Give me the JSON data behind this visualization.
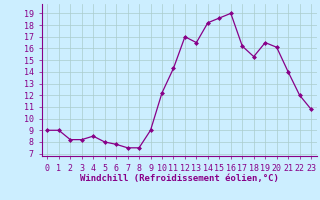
{
  "x": [
    0,
    1,
    2,
    3,
    4,
    5,
    6,
    7,
    8,
    9,
    10,
    11,
    12,
    13,
    14,
    15,
    16,
    17,
    18,
    19,
    20,
    21,
    22,
    23
  ],
  "y": [
    9,
    9,
    8.2,
    8.2,
    8.5,
    8.0,
    7.8,
    7.5,
    7.5,
    9,
    12.2,
    14.3,
    17,
    16.5,
    18.2,
    18.6,
    19.0,
    16.2,
    15.3,
    16.5,
    16.1,
    14,
    12,
    10.8
  ],
  "line_color": "#880088",
  "marker": "D",
  "marker_size": 2.0,
  "background_color": "#cceeff",
  "grid_color": "#aacccc",
  "xlabel": "Windchill (Refroidissement éolien,°C)",
  "ylabel_ticks": [
    7,
    8,
    9,
    10,
    11,
    12,
    13,
    14,
    15,
    16,
    17,
    18,
    19
  ],
  "ylim": [
    6.8,
    19.8
  ],
  "xlim": [
    -0.5,
    23.5
  ],
  "xtick_labels": [
    "0",
    "1",
    "2",
    "3",
    "4",
    "5",
    "6",
    "7",
    "8",
    "9",
    "10",
    "11",
    "12",
    "13",
    "14",
    "15",
    "16",
    "17",
    "18",
    "19",
    "20",
    "21",
    "22",
    "23"
  ],
  "axis_label_color": "#880088",
  "tick_color": "#880088",
  "font_size_xlabel": 6.5,
  "font_size_ticks": 6.0,
  "spine_color": "#880088",
  "line_width": 0.9
}
